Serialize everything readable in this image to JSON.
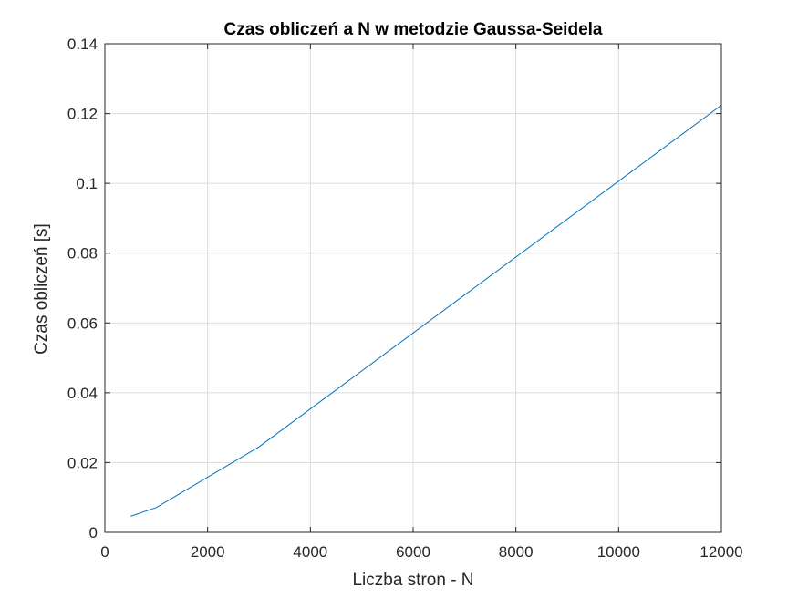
{
  "chart_data": {
    "type": "line",
    "title": "Czas obliczeń a N w metodzie Gaussa-Seidela",
    "xlabel": "Liczba stron - N",
    "ylabel": "Czas obliczeń [s]",
    "xlim": [
      0,
      12000
    ],
    "ylim": [
      0,
      0.14
    ],
    "xticks": [
      0,
      2000,
      4000,
      6000,
      8000,
      10000,
      12000
    ],
    "xtick_labels": [
      "0",
      "2000",
      "4000",
      "6000",
      "8000",
      "10000",
      "12000"
    ],
    "yticks": [
      0,
      0.02,
      0.04,
      0.06,
      0.08,
      0.1,
      0.12,
      0.14
    ],
    "ytick_labels": [
      "0",
      "0.02",
      "0.04",
      "0.06",
      "0.08",
      "0.1",
      "0.12",
      "0.14"
    ],
    "grid": true,
    "box": true,
    "series": [
      {
        "color": "#0072BD",
        "x": [
          500,
          1000,
          3000,
          12000
        ],
        "y": [
          0.0046,
          0.0071,
          0.0245,
          0.1224
        ]
      }
    ]
  }
}
